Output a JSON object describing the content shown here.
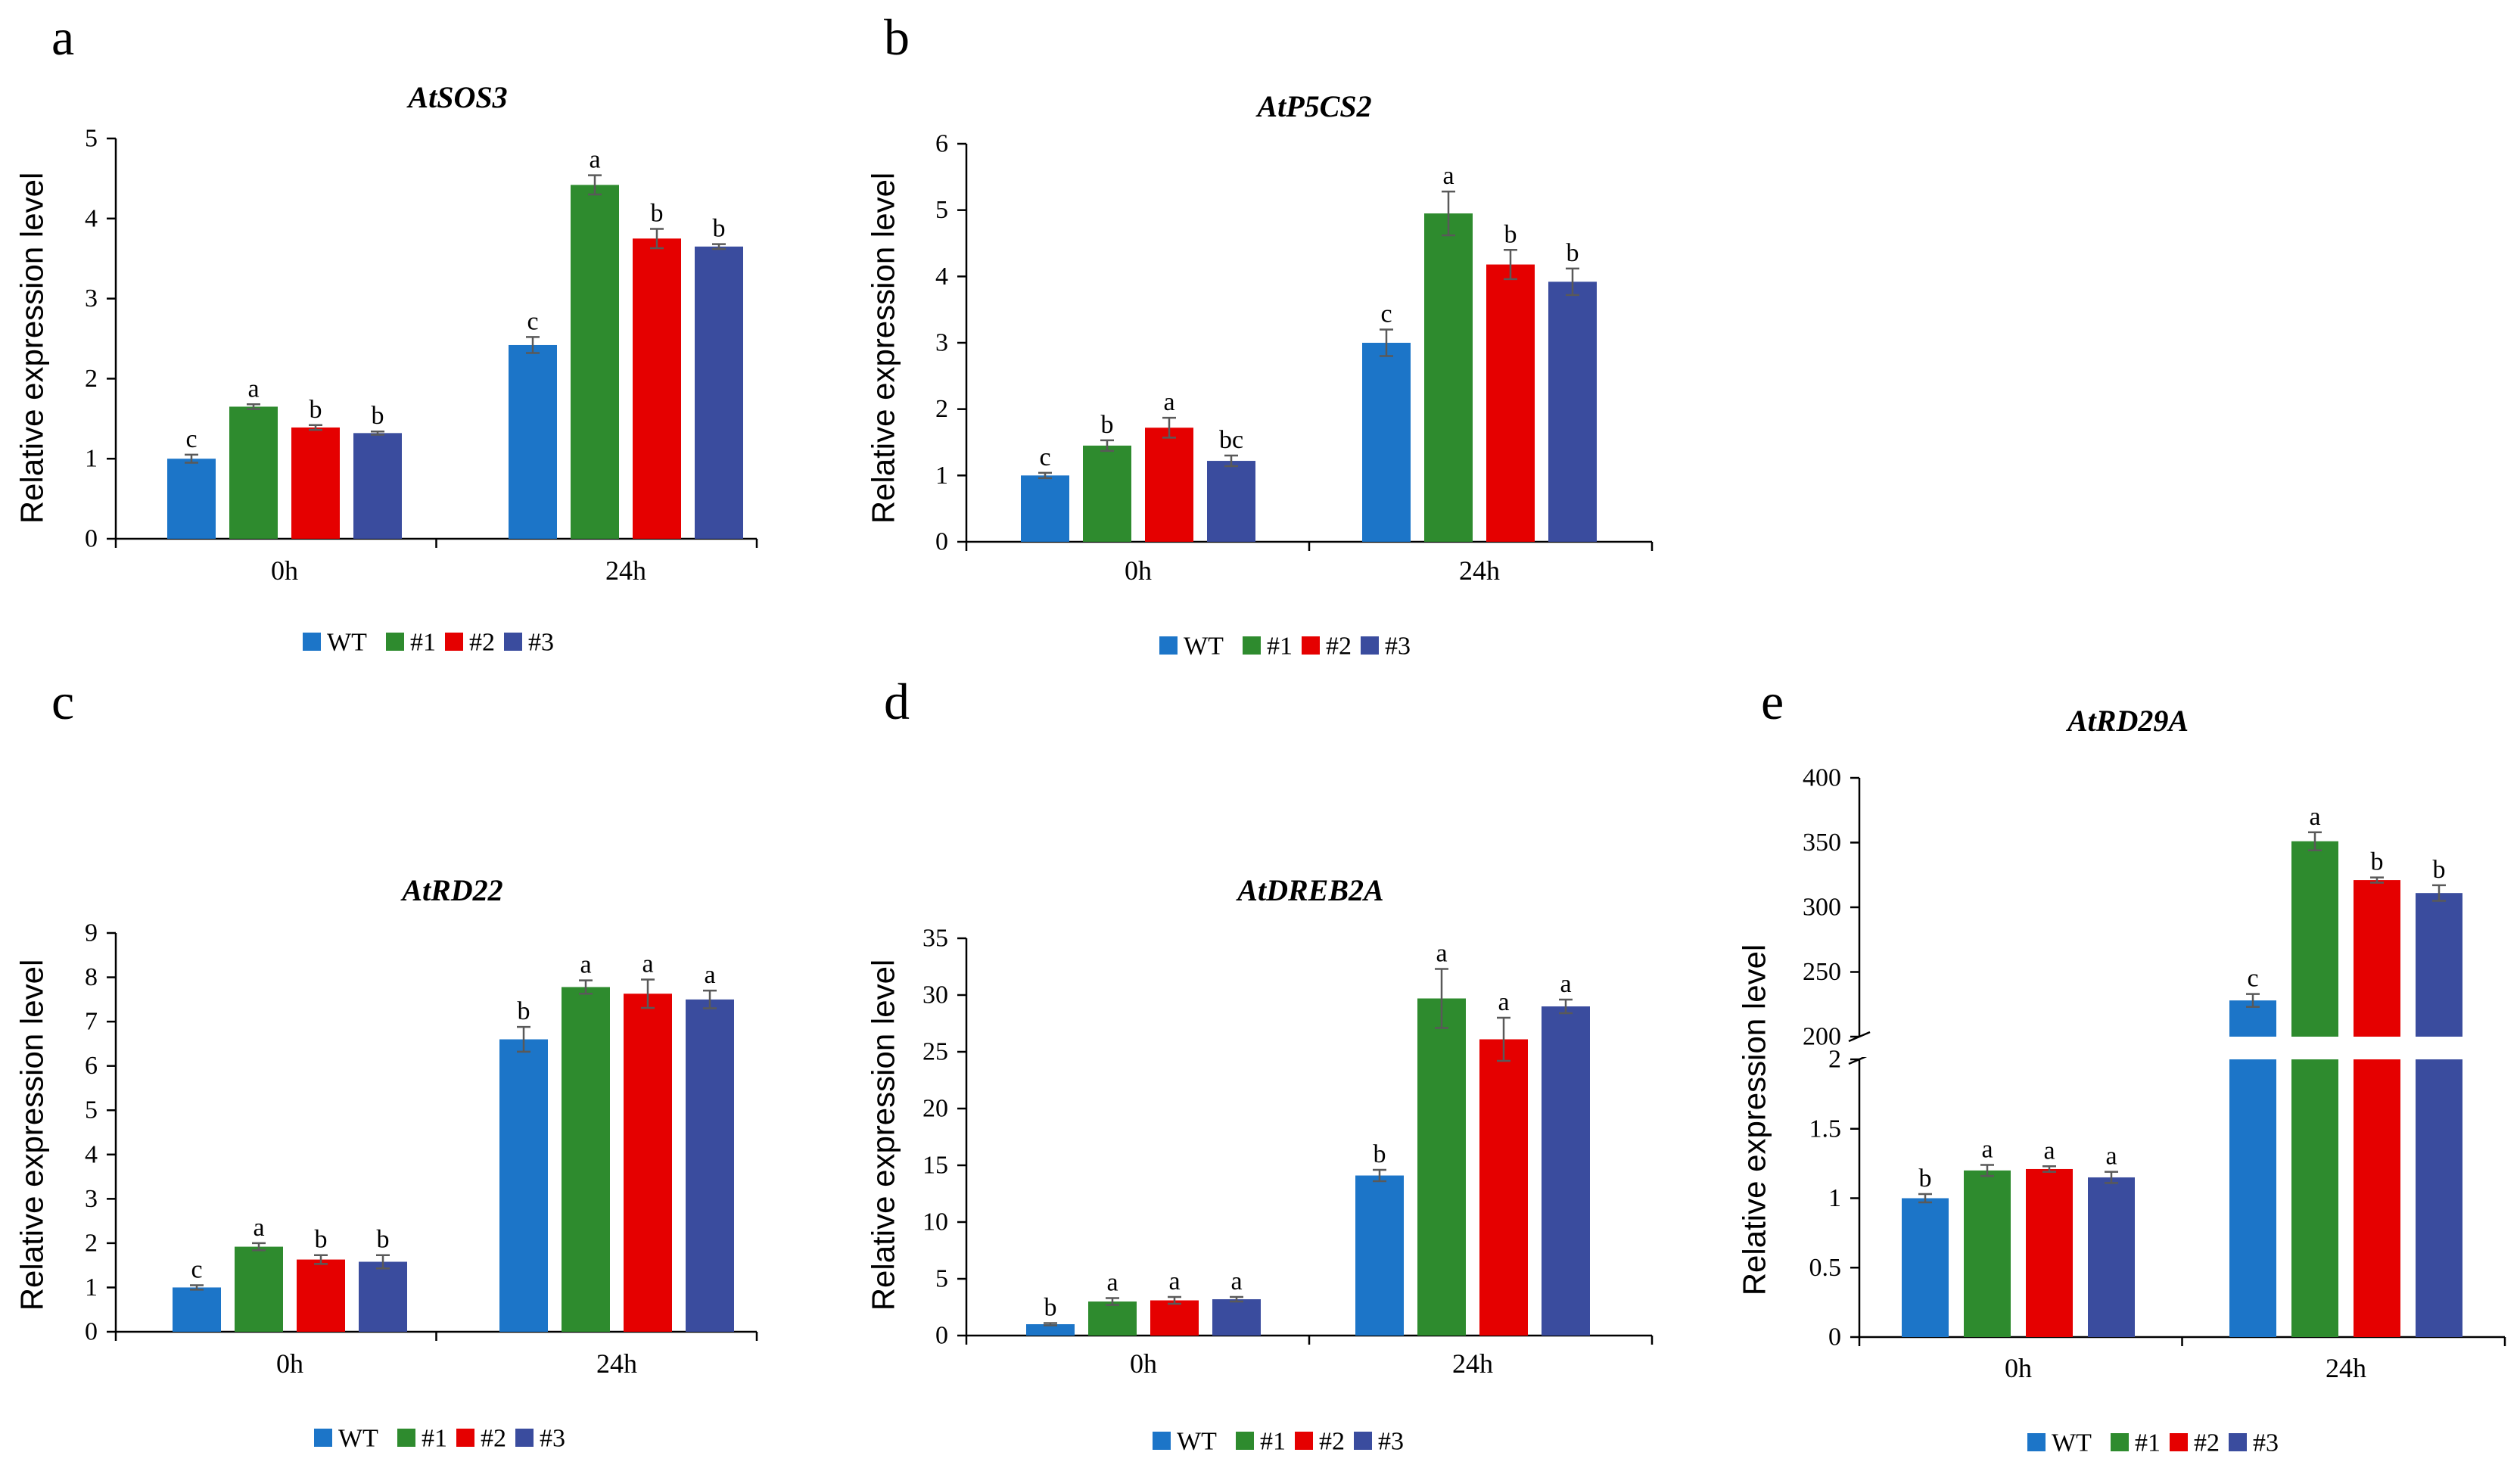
{
  "colors": {
    "WT": "#1C75C8",
    "#1": "#2E8B2E",
    "#2": "#E50000",
    "#3": "#3A4C9E",
    "axis": "#000000",
    "error": "#595959"
  },
  "legend_entries": [
    "WT",
    "#1",
    "#2",
    "#3"
  ],
  "chart_data": [
    {
      "panel": "a",
      "type": "bar",
      "title": "AtSOS3",
      "xlabel": "",
      "ylabel": "Relative expression level",
      "categories": [
        "0h",
        "24h"
      ],
      "ylim": [
        0,
        5
      ],
      "yticks": [
        "0",
        "1",
        "2",
        "3",
        "4",
        "5"
      ],
      "series": [
        {
          "name": "WT",
          "values": [
            1.0,
            2.42
          ],
          "errors": [
            0.05,
            0.1
          ],
          "letters": [
            "c",
            "c"
          ]
        },
        {
          "name": "#1",
          "values": [
            1.65,
            4.42
          ],
          "errors": [
            0.03,
            0.12
          ],
          "letters": [
            "a",
            "a"
          ]
        },
        {
          "name": "#2",
          "values": [
            1.39,
            3.75
          ],
          "errors": [
            0.03,
            0.12
          ],
          "letters": [
            "b",
            "b"
          ]
        },
        {
          "name": "#3",
          "values": [
            1.32,
            3.65
          ],
          "errors": [
            0.02,
            0.03
          ],
          "letters": [
            "b",
            "b"
          ]
        }
      ]
    },
    {
      "panel": "b",
      "type": "bar",
      "title": "AtP5CS2",
      "xlabel": "",
      "ylabel": "Relative expression level",
      "categories": [
        "0h",
        "24h"
      ],
      "ylim": [
        0,
        6
      ],
      "yticks": [
        "0",
        "1",
        "2",
        "3",
        "4",
        "5",
        "6"
      ],
      "series": [
        {
          "name": "WT",
          "values": [
            1.0,
            3.0
          ],
          "errors": [
            0.04,
            0.2
          ],
          "letters": [
            "c",
            "c"
          ]
        },
        {
          "name": "#1",
          "values": [
            1.45,
            4.95
          ],
          "errors": [
            0.08,
            0.33
          ],
          "letters": [
            "b",
            "a"
          ]
        },
        {
          "name": "#2",
          "values": [
            1.72,
            4.18
          ],
          "errors": [
            0.15,
            0.22
          ],
          "letters": [
            "a",
            "b"
          ]
        },
        {
          "name": "#3",
          "values": [
            1.22,
            3.92
          ],
          "errors": [
            0.08,
            0.2
          ],
          "letters": [
            "bc",
            "b"
          ]
        }
      ]
    },
    {
      "panel": "c",
      "type": "bar",
      "title": "AtRD22",
      "xlabel": "",
      "ylabel": "Relative expression level",
      "categories": [
        "0h",
        "24h"
      ],
      "ylim": [
        0,
        9
      ],
      "yticks": [
        "0",
        "1",
        "2",
        "3",
        "4",
        "5",
        "6",
        "7",
        "8",
        "9"
      ],
      "series": [
        {
          "name": "WT",
          "values": [
            1.0,
            6.6
          ],
          "errors": [
            0.05,
            0.28
          ],
          "letters": [
            "c",
            "b"
          ]
        },
        {
          "name": "#1",
          "values": [
            1.92,
            7.78
          ],
          "errors": [
            0.08,
            0.15
          ],
          "letters": [
            "a",
            "a"
          ]
        },
        {
          "name": "#2",
          "values": [
            1.63,
            7.63
          ],
          "errors": [
            0.1,
            0.32
          ],
          "letters": [
            "b",
            "a"
          ]
        },
        {
          "name": "#3",
          "values": [
            1.58,
            7.5
          ],
          "errors": [
            0.15,
            0.2
          ],
          "letters": [
            "b",
            "a"
          ]
        }
      ]
    },
    {
      "panel": "d",
      "type": "bar",
      "title": "AtDREB2A",
      "xlabel": "",
      "ylabel": "Relative expression level",
      "categories": [
        "0h",
        "24h"
      ],
      "ylim": [
        0,
        35
      ],
      "yticks": [
        "0",
        "5",
        "10",
        "15",
        "20",
        "25",
        "30",
        "35"
      ],
      "series": [
        {
          "name": "WT",
          "values": [
            1.0,
            14.1
          ],
          "errors": [
            0.1,
            0.5
          ],
          "letters": [
            "b",
            "b"
          ]
        },
        {
          "name": "#1",
          "values": [
            3.0,
            29.7
          ],
          "errors": [
            0.3,
            2.6
          ],
          "letters": [
            "a",
            "a"
          ]
        },
        {
          "name": "#2",
          "values": [
            3.1,
            26.1
          ],
          "errors": [
            0.3,
            1.9
          ],
          "letters": [
            "a",
            "a"
          ]
        },
        {
          "name": "#3",
          "values": [
            3.2,
            29.0
          ],
          "errors": [
            0.2,
            0.6
          ],
          "letters": [
            "a",
            "a"
          ]
        }
      ]
    },
    {
      "panel": "e",
      "type": "bar",
      "broken_axis": true,
      "title": "AtRD29A",
      "xlabel": "",
      "ylabel": "Relative expression level",
      "categories": [
        "0h",
        "24h"
      ],
      "ylim_lower": [
        0,
        2
      ],
      "ylim_upper": [
        200,
        400
      ],
      "yticks_lower": [
        "0",
        "0.5",
        "1",
        "1.5",
        "2"
      ],
      "yticks_upper": [
        "200",
        "250",
        "300",
        "350",
        "400"
      ],
      "series": [
        {
          "name": "WT",
          "values": [
            1.0,
            228
          ],
          "errors": [
            0.03,
            5
          ],
          "letters": [
            "b",
            "c"
          ]
        },
        {
          "name": "#1",
          "values": [
            1.2,
            351
          ],
          "errors": [
            0.04,
            7
          ],
          "letters": [
            "a",
            "a"
          ]
        },
        {
          "name": "#2",
          "values": [
            1.21,
            321
          ],
          "errors": [
            0.02,
            2
          ],
          "letters": [
            "a",
            "b"
          ]
        },
        {
          "name": "#3",
          "values": [
            1.15,
            311
          ],
          "errors": [
            0.04,
            6
          ],
          "letters": [
            "a",
            "b"
          ]
        }
      ]
    }
  ]
}
